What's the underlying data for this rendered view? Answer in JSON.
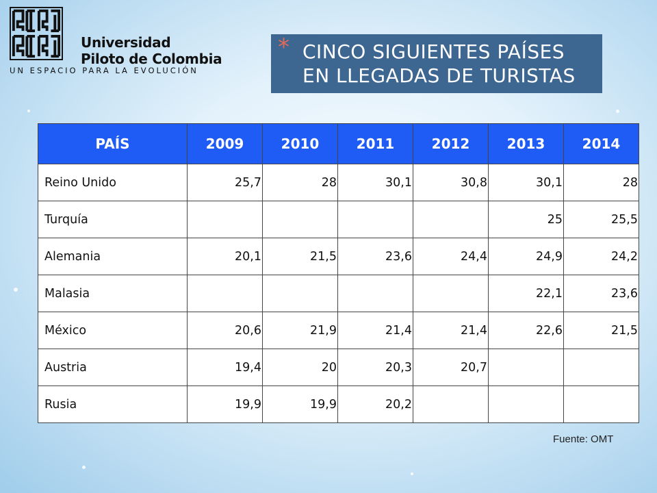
{
  "logo": {
    "name_line1": "Universidad",
    "name_line2": "Piloto de Colombia",
    "tagline": "UN ESPACIO PARA LA EVOLUCIÓN"
  },
  "title": {
    "line1": "CINCO SIGUIENTES PAÍSES",
    "line2": "EN LLEGADAS DE TURISTAS"
  },
  "table": {
    "headers": [
      "PAÍS",
      "2009",
      "2010",
      "2011",
      "2012",
      "2013",
      "2014"
    ],
    "rows": [
      [
        "Reino Unido",
        "25,7",
        "28",
        "30,1",
        "30,8",
        "30,1",
        "28"
      ],
      [
        "Turquía",
        "",
        "",
        "",
        "",
        "25",
        "25,5"
      ],
      [
        "Alemania",
        "20,1",
        "21,5",
        "23,6",
        "24,4",
        "24,9",
        "24,2"
      ],
      [
        "Malasia",
        "",
        "",
        "",
        "",
        "22,1",
        "23,6"
      ],
      [
        "México",
        "20,6",
        "21,9",
        "21,4",
        "21,4",
        "22,6",
        "21,5"
      ],
      [
        "Austria",
        "19,4",
        "20",
        "20,3",
        "20,7",
        "",
        ""
      ],
      [
        "Rusia",
        "19,9",
        "19,9",
        "20,2",
        "",
        "",
        ""
      ]
    ]
  },
  "source": "Fuente: OMT",
  "colors": {
    "header_bg": "#1f5bf5",
    "title_bg": "#3d6690",
    "bullet": "#e06a5a"
  }
}
